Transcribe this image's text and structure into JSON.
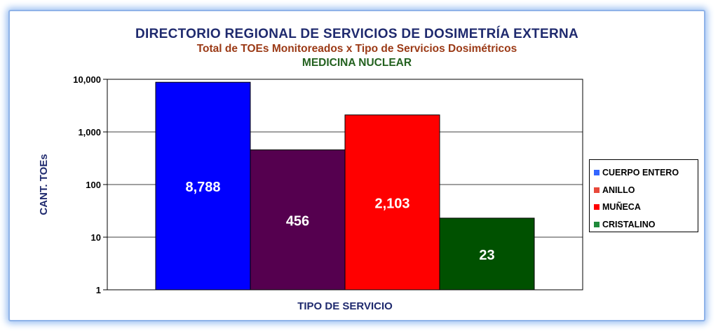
{
  "chart_data": {
    "type": "bar",
    "title": "DIRECTORIO REGIONAL DE SERVICIOS DE DOSIMETRÍA EXTERNA",
    "subtitle": "Total de TOEs Monitoreados x Tipo de Servicios Dosimétricos",
    "subtitle2": "MEDICINA NUCLEAR",
    "xlabel": "TIPO DE SERVICIO",
    "ylabel": "CANT. TOEs",
    "yscale": "log",
    "ylim": [
      1,
      10000
    ],
    "yticks": [
      1,
      10,
      100,
      1000,
      10000
    ],
    "ytick_labels": [
      "1",
      "10",
      "100",
      "1,000",
      "10,000"
    ],
    "grid": true,
    "legend_position": "right",
    "series": [
      {
        "name": "CUERPO ENTERO",
        "value": 8788,
        "label": "8,788",
        "color": "#0000ff",
        "legend_color": "#3366ff"
      },
      {
        "name": "ANILLO",
        "value": 456,
        "label": "456",
        "color": "#55004f",
        "legend_color": "#e8493b"
      },
      {
        "name": "MUÑECA",
        "value": 2103,
        "label": "2,103",
        "color": "#ff0000",
        "legend_color": "#ff0000"
      },
      {
        "name": "CRISTALINO",
        "value": 23,
        "label": "23",
        "color": "#005100",
        "legend_color": "#1f8a3a"
      }
    ]
  }
}
